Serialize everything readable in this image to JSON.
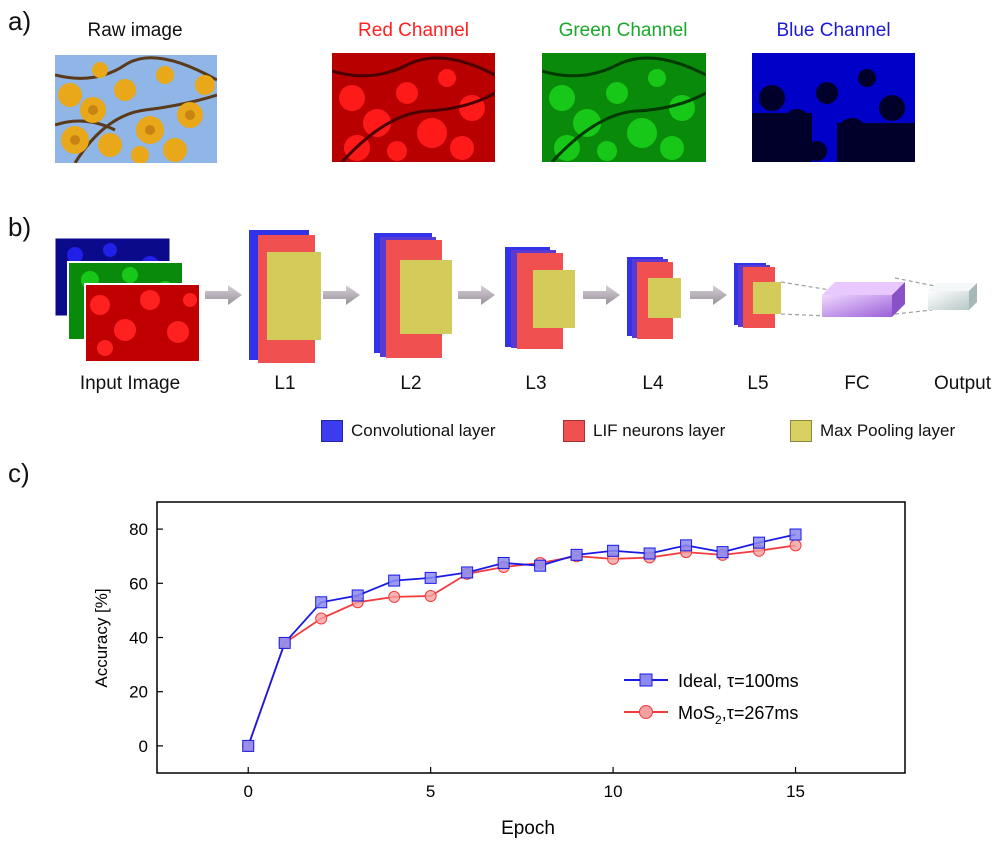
{
  "panels": {
    "a": "a)",
    "b": "b)",
    "c": "c)"
  },
  "panel_a": {
    "captions": [
      {
        "text": "Raw image",
        "color": "#111111"
      },
      {
        "text": "Red Channel",
        "color": "#ff2020"
      },
      {
        "text": "Green Channel",
        "color": "#1aa82a"
      },
      {
        "text": "Blue Channel",
        "color": "#1a1ad8"
      }
    ]
  },
  "panel_b": {
    "stage_labels": [
      "Input Image",
      "L1",
      "L2",
      "L3",
      "L4",
      "L5",
      "FC",
      "Output"
    ],
    "legend": [
      {
        "label": "Convolutional layer",
        "color": "#3b3bf0"
      },
      {
        "label": "LIF neurons layer",
        "color": "#f05050"
      },
      {
        "label": "Max Pooling layer",
        "color": "#d8d060"
      }
    ]
  },
  "chart_data": {
    "type": "line",
    "xlabel": "Epoch",
    "ylabel": "Accuracy [%]",
    "xlim": [
      -2.5,
      18
    ],
    "ylim": [
      -10,
      90
    ],
    "xticks": [
      0,
      5,
      10,
      15
    ],
    "yticks": [
      0,
      20,
      40,
      60,
      80
    ],
    "legend_position": "right",
    "x": [
      0,
      1,
      2,
      3,
      4,
      5,
      6,
      7,
      8,
      9,
      10,
      11,
      12,
      13,
      14,
      15
    ],
    "series": [
      {
        "name": "Ideal, τ=100ms",
        "color": "#1a1ae6",
        "marker": "square",
        "values": [
          0,
          38,
          53,
          55.5,
          61,
          62,
          64,
          67.5,
          66.5,
          70.5,
          72,
          71,
          74,
          71.5,
          75,
          78
        ]
      },
      {
        "name_parts": {
          "main": "MoS",
          "sub": "2",
          "rest": ",τ=267ms"
        },
        "color": "#f03c3c",
        "marker": "circle",
        "values": [
          0,
          38,
          47,
          53,
          55,
          55.3,
          63.5,
          66,
          67.5,
          70,
          69,
          69.5,
          71.5,
          70.5,
          72,
          74
        ]
      }
    ]
  }
}
